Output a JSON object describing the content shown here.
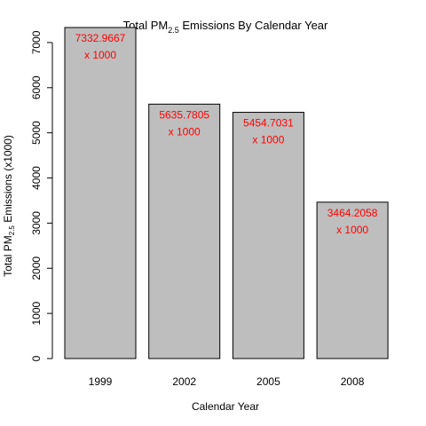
{
  "chart_data": {
    "type": "bar",
    "title": {
      "main": "Total PM",
      "subscript": "2.5",
      "rest": " Emissions By Calendar Year"
    },
    "xlabel": "Calendar Year",
    "ylabel": {
      "main": "Total PM",
      "subscript": "2.5",
      "rest": " Emissions    (x1000)"
    },
    "categories": [
      "1999",
      "2002",
      "2005",
      "2008"
    ],
    "values": [
      7332.9667,
      5635.7805,
      5454.7031,
      3464.2058
    ],
    "data_labels": [
      {
        "value": "7332.9667",
        "suffix": "x 1000"
      },
      {
        "value": "5635.7805",
        "suffix": "x 1000"
      },
      {
        "value": "5454.7031",
        "suffix": "x 1000"
      },
      {
        "value": "3464.2058",
        "suffix": "x 1000"
      }
    ],
    "yticks": [
      0,
      1000,
      2000,
      3000,
      4000,
      5000,
      6000,
      7000
    ],
    "ylim": [
      0,
      7333
    ],
    "grid": false,
    "colors": {
      "bar_fill": "#bebebe",
      "bar_stroke": "#000000",
      "label": "#ff0000",
      "text": "#000000"
    }
  }
}
